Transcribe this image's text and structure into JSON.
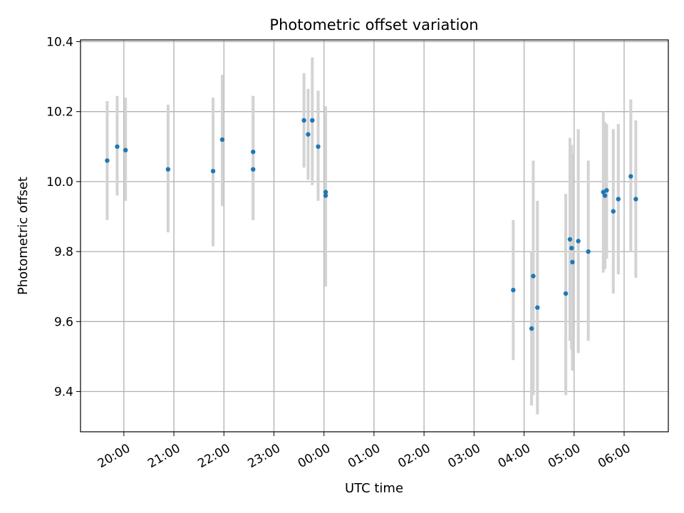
{
  "chart_data": {
    "type": "scatter",
    "title": "Photometric offset variation",
    "xlabel": "UTC time",
    "ylabel": "Photometric offset",
    "xlim": [
      "19:08",
      "06:53"
    ],
    "ylim": [
      9.285,
      10.405
    ],
    "x_ticks": [
      "20:00",
      "21:00",
      "22:00",
      "23:00",
      "00:00",
      "01:00",
      "02:00",
      "03:00",
      "04:00",
      "05:00",
      "06:00"
    ],
    "y_ticks": [
      "9.4",
      "9.6",
      "9.8",
      "10.0",
      "10.2",
      "10.4"
    ],
    "grid": true,
    "point_color": "#1f77b4",
    "errorbar_color": "#d3d3d3",
    "points": [
      {
        "x": "19:40",
        "y": 10.06,
        "ylow": 9.89,
        "yhigh": 10.23
      },
      {
        "x": "19:52",
        "y": 10.1,
        "ylow": 9.96,
        "yhigh": 10.245
      },
      {
        "x": "20:02",
        "y": 10.09,
        "ylow": 9.945,
        "yhigh": 10.24
      },
      {
        "x": "20:53",
        "y": 10.035,
        "ylow": 9.855,
        "yhigh": 10.22
      },
      {
        "x": "21:47",
        "y": 10.03,
        "ylow": 9.815,
        "yhigh": 10.24
      },
      {
        "x": "21:58",
        "y": 10.12,
        "ylow": 9.93,
        "yhigh": 10.305
      },
      {
        "x": "22:35",
        "y": 10.085,
        "ylow": 9.89,
        "yhigh": 10.245
      },
      {
        "x": "22:35",
        "y": 10.035,
        "ylow": 9.89,
        "yhigh": 10.245
      },
      {
        "x": "23:36",
        "y": 10.175,
        "ylow": 10.04,
        "yhigh": 10.31
      },
      {
        "x": "23:41",
        "y": 10.135,
        "ylow": 10.005,
        "yhigh": 10.265
      },
      {
        "x": "23:46",
        "y": 10.175,
        "ylow": 9.99,
        "yhigh": 10.355
      },
      {
        "x": "23:53",
        "y": 10.1,
        "ylow": 9.945,
        "yhigh": 10.26
      },
      {
        "x": "00:02",
        "y": 9.97,
        "ylow": 9.7,
        "yhigh": 10.215
      },
      {
        "x": "00:02",
        "y": 9.96,
        "ylow": 9.7,
        "yhigh": 10.215
      },
      {
        "x": "03:47",
        "y": 9.69,
        "ylow": 9.49,
        "yhigh": 9.89
      },
      {
        "x": "04:09",
        "y": 9.58,
        "ylow": 9.36,
        "yhigh": 9.8
      },
      {
        "x": "04:11",
        "y": 9.73,
        "ylow": 9.39,
        "yhigh": 10.06
      },
      {
        "x": "04:16",
        "y": 9.64,
        "ylow": 9.335,
        "yhigh": 9.945
      },
      {
        "x": "04:50",
        "y": 9.68,
        "ylow": 9.39,
        "yhigh": 9.965
      },
      {
        "x": "04:55",
        "y": 9.835,
        "ylow": 9.545,
        "yhigh": 10.125
      },
      {
        "x": "04:57",
        "y": 9.81,
        "ylow": 9.52,
        "yhigh": 10.105
      },
      {
        "x": "04:58",
        "y": 9.77,
        "ylow": 9.46,
        "yhigh": 10.08
      },
      {
        "x": "05:05",
        "y": 9.83,
        "ylow": 9.51,
        "yhigh": 10.15
      },
      {
        "x": "05:17",
        "y": 9.8,
        "ylow": 9.545,
        "yhigh": 10.06
      },
      {
        "x": "05:35",
        "y": 9.97,
        "ylow": 9.74,
        "yhigh": 10.2
      },
      {
        "x": "05:37",
        "y": 9.96,
        "ylow": 9.75,
        "yhigh": 10.17
      },
      {
        "x": "05:39",
        "y": 9.975,
        "ylow": 9.78,
        "yhigh": 10.165
      },
      {
        "x": "05:47",
        "y": 9.915,
        "ylow": 9.68,
        "yhigh": 10.15
      },
      {
        "x": "05:53",
        "y": 9.95,
        "ylow": 9.735,
        "yhigh": 10.165
      },
      {
        "x": "06:08",
        "y": 10.015,
        "ylow": 9.8,
        "yhigh": 10.235
      },
      {
        "x": "06:14",
        "y": 9.95,
        "ylow": 9.725,
        "yhigh": 10.175
      }
    ]
  }
}
